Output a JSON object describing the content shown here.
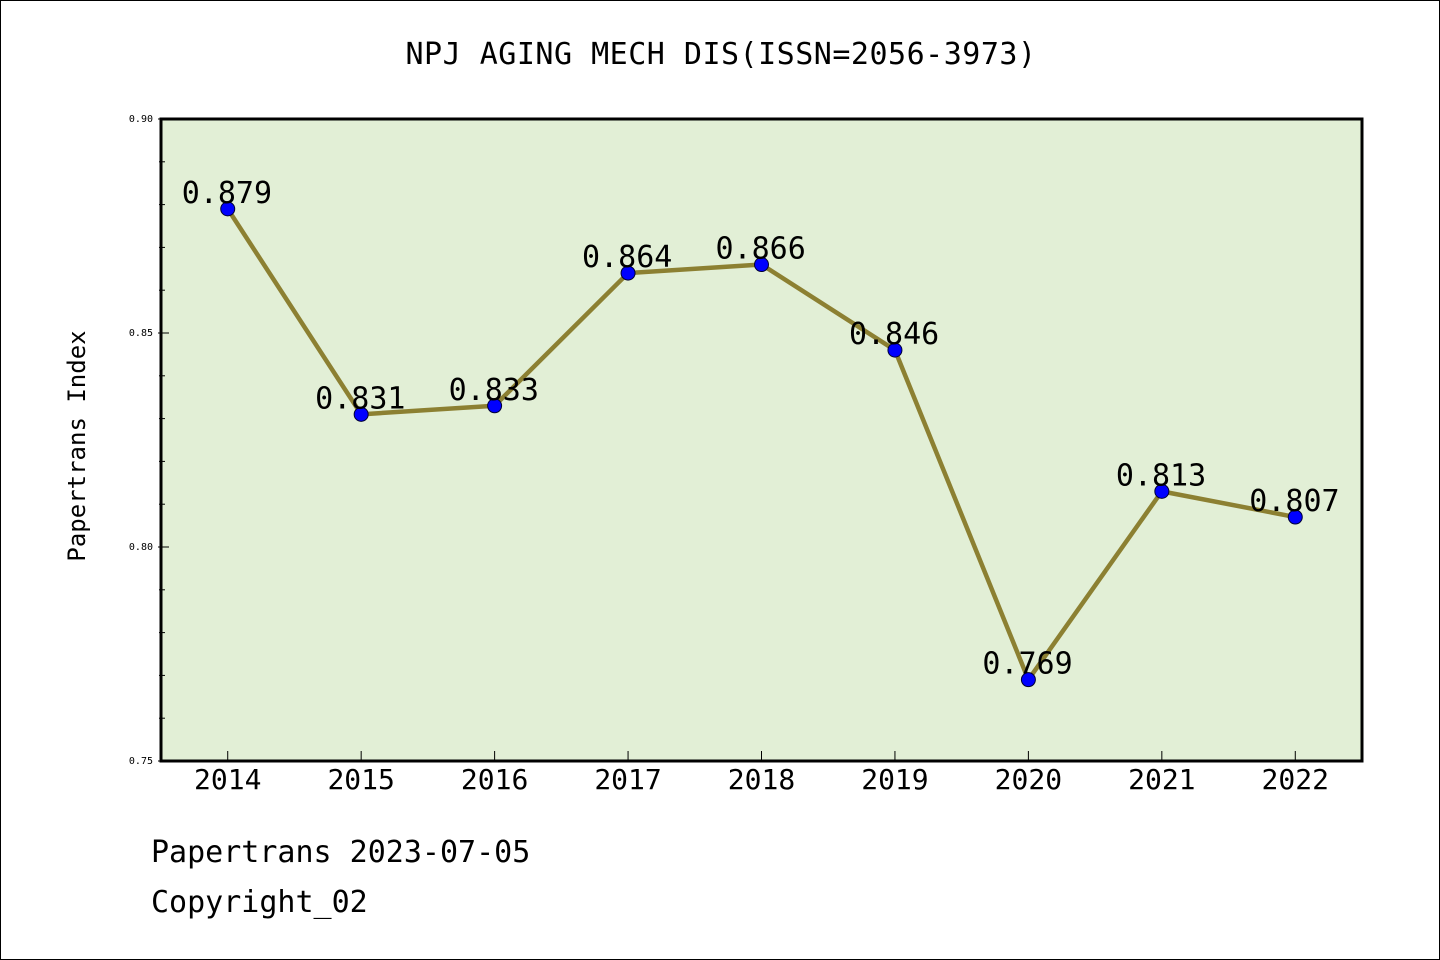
{
  "colors": {
    "plot_background": "#e2efd6",
    "line": "#8c8032",
    "marker": "#0000ff"
  },
  "chart_data": {
    "type": "line",
    "title": "NPJ AGING MECH DIS(ISSN=2056-3973)",
    "xlabel": "",
    "ylabel": "Papertrans Index",
    "categories": [
      "2014",
      "2015",
      "2016",
      "2017",
      "2018",
      "2019",
      "2020",
      "2021",
      "2022"
    ],
    "series": [
      {
        "values": [
          0.879,
          0.831,
          0.833,
          0.864,
          0.866,
          0.846,
          0.769,
          0.813,
          0.807
        ],
        "data_labels": [
          "0.879",
          "0.831",
          "0.833",
          "0.864",
          "0.866",
          "0.846",
          "0.769",
          "0.813",
          "0.807"
        ]
      }
    ],
    "ylim": [
      0.75,
      0.9
    ],
    "yticks": [
      0.75,
      0.8,
      0.85,
      0.9
    ],
    "ytick_labels": [
      "0.75",
      "0.80",
      "0.85",
      "0.90"
    ],
    "y_minor_step": 0.01,
    "grid": false,
    "legend": "none"
  },
  "footer": {
    "date_line": "Papertrans 2023-07-05",
    "copyright_line": "Copyright_02"
  }
}
